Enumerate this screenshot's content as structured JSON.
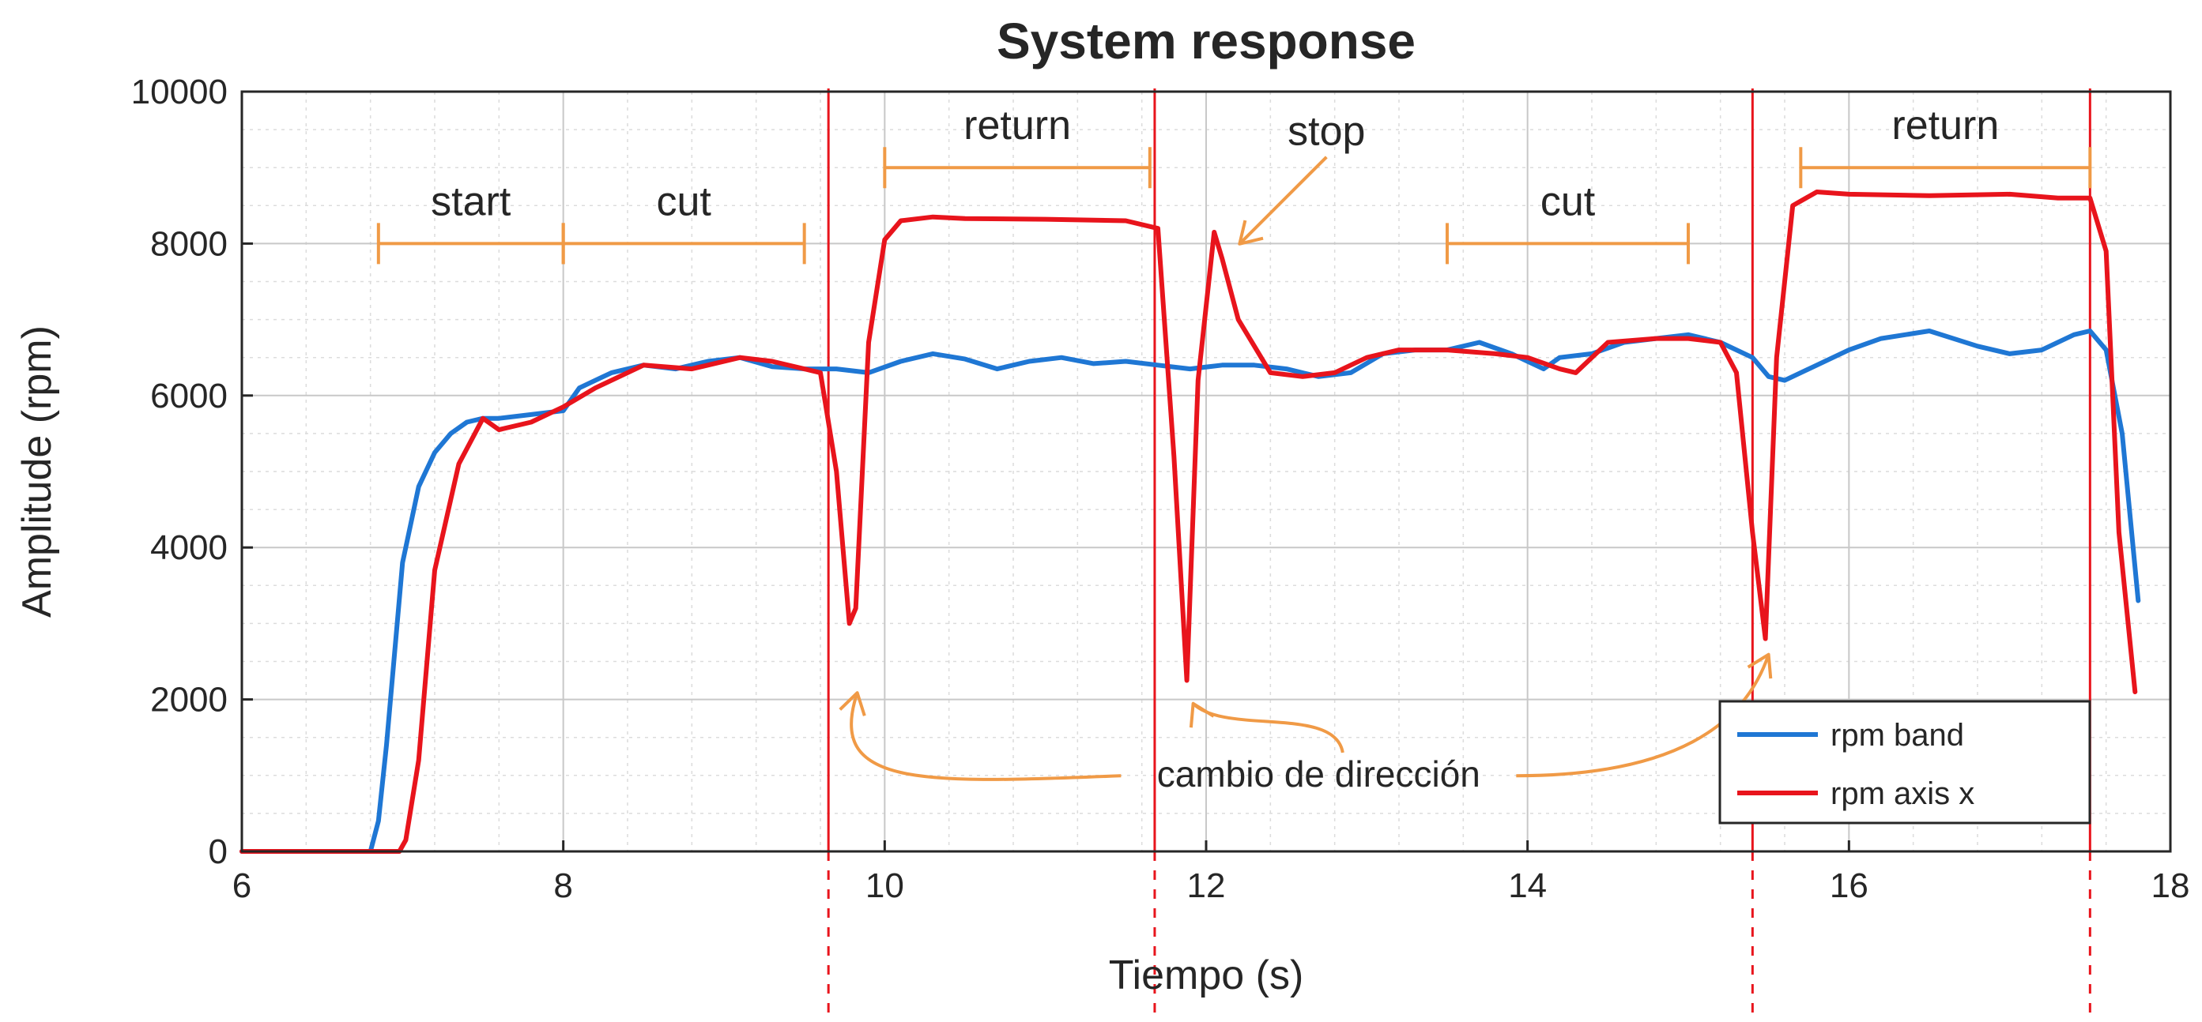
{
  "chart_data": {
    "type": "line",
    "title": "System response",
    "xlabel": "Tiempo (s)",
    "ylabel": "Amplitude (rpm)",
    "xlim": [
      6,
      18
    ],
    "ylim": [
      0,
      10000
    ],
    "xticks": [
      6,
      8,
      10,
      12,
      14,
      16,
      18
    ],
    "yticks": [
      0,
      2000,
      4000,
      6000,
      8000,
      10000
    ],
    "grid": true,
    "legend_position": "bottom-right",
    "colors": {
      "rpm band": "#1f77d4",
      "rpm axis x": "#e8141c",
      "annotation": "#f09a46",
      "marker_line": "#e8141c"
    },
    "series": [
      {
        "name": "rpm band",
        "x": [
          6.0,
          6.8,
          6.85,
          6.9,
          7.0,
          7.1,
          7.2,
          7.3,
          7.4,
          7.5,
          7.6,
          7.8,
          8.0,
          8.1,
          8.3,
          8.5,
          8.7,
          8.9,
          9.1,
          9.3,
          9.5,
          9.7,
          9.9,
          10.1,
          10.3,
          10.5,
          10.7,
          10.9,
          11.1,
          11.3,
          11.5,
          11.7,
          11.9,
          12.1,
          12.3,
          12.5,
          12.7,
          12.9,
          13.1,
          13.3,
          13.5,
          13.7,
          13.9,
          14.0,
          14.1,
          14.2,
          14.4,
          14.6,
          14.8,
          15.0,
          15.2,
          15.4,
          15.5,
          15.6,
          15.8,
          16.0,
          16.2,
          16.5,
          16.8,
          17.0,
          17.2,
          17.4,
          17.5,
          17.6,
          17.7,
          17.8
        ],
        "y": [
          0,
          0,
          400,
          1400,
          3800,
          4800,
          5250,
          5500,
          5650,
          5700,
          5700,
          5750,
          5800,
          6100,
          6300,
          6400,
          6350,
          6450,
          6500,
          6380,
          6350,
          6350,
          6300,
          6450,
          6550,
          6480,
          6350,
          6450,
          6500,
          6420,
          6450,
          6400,
          6350,
          6400,
          6400,
          6350,
          6250,
          6300,
          6550,
          6600,
          6600,
          6700,
          6550,
          6450,
          6350,
          6500,
          6550,
          6700,
          6750,
          6800,
          6700,
          6500,
          6250,
          6200,
          6400,
          6600,
          6750,
          6850,
          6650,
          6550,
          6600,
          6800,
          6850,
          6600,
          5500,
          3300
        ]
      },
      {
        "name": "rpm axis x",
        "x": [
          6.0,
          6.98,
          7.02,
          7.1,
          7.2,
          7.35,
          7.5,
          7.6,
          7.8,
          8.0,
          8.2,
          8.5,
          8.8,
          9.1,
          9.3,
          9.6,
          9.7,
          9.78,
          9.82,
          9.9,
          10.0,
          10.1,
          10.3,
          10.5,
          11.0,
          11.5,
          11.7,
          11.8,
          11.88,
          11.95,
          12.05,
          12.1,
          12.2,
          12.4,
          12.6,
          12.8,
          13.0,
          13.2,
          13.5,
          13.8,
          14.0,
          14.2,
          14.3,
          14.5,
          14.8,
          15.0,
          15.2,
          15.3,
          15.4,
          15.48,
          15.55,
          15.65,
          15.8,
          16.0,
          16.5,
          17.0,
          17.3,
          17.5,
          17.6,
          17.68,
          17.78
        ],
        "y": [
          0,
          0,
          150,
          1200,
          3700,
          5100,
          5700,
          5550,
          5650,
          5850,
          6100,
          6400,
          6350,
          6500,
          6450,
          6300,
          5000,
          3000,
          3200,
          6700,
          8050,
          8300,
          8350,
          8330,
          8320,
          8300,
          8200,
          5200,
          2250,
          6200,
          8150,
          7800,
          7000,
          6300,
          6250,
          6300,
          6500,
          6600,
          6600,
          6550,
          6500,
          6350,
          6300,
          6700,
          6750,
          6750,
          6700,
          6300,
          4200,
          2800,
          6500,
          8500,
          8680,
          8650,
          8630,
          8650,
          8600,
          8600,
          7900,
          4200,
          2100
        ]
      }
    ],
    "vertical_lines": [
      9.65,
      11.68,
      15.4,
      17.5
    ],
    "annotations": [
      {
        "label": "start",
        "x_range": [
          6.85,
          8.0
        ],
        "y": 8000
      },
      {
        "label": "cut",
        "x_range": [
          8.0,
          9.5
        ],
        "y": 8000
      },
      {
        "label": "return",
        "x_range": [
          10.0,
          11.65
        ],
        "y": 9000
      },
      {
        "label": "stop",
        "point": [
          12.1,
          8100
        ]
      },
      {
        "label": "cut",
        "x_range": [
          13.5,
          15.0
        ],
        "y": 8000
      },
      {
        "label": "return",
        "x_range": [
          15.7,
          17.5
        ],
        "y": 9000
      },
      {
        "label": "cambio de dirección",
        "points": [
          [
            9.78,
            2400
          ],
          [
            11.88,
            2050
          ],
          [
            15.48,
            2800
          ]
        ]
      }
    ]
  }
}
